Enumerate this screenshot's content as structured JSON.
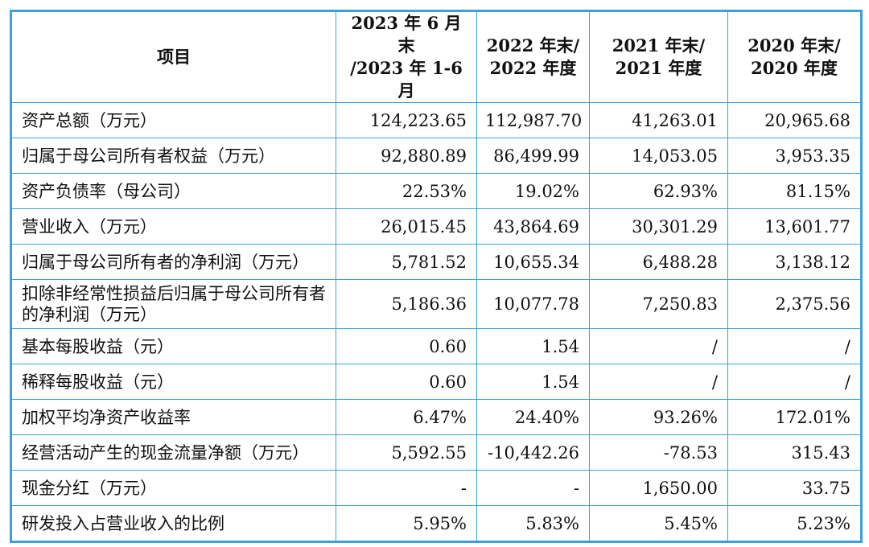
{
  "table": {
    "headers": [
      [
        "项目"
      ],
      [
        "2023 年 6 月末",
        "/2023 年 1-6 月"
      ],
      [
        "2022 年末/",
        "2022 年度"
      ],
      [
        "2021 年末/",
        "2021 年度"
      ],
      [
        "2020 年末/",
        "2020 年度"
      ]
    ],
    "rows": [
      {
        "label": "资产总额（万元）",
        "values": [
          "124,223.65",
          "112,987.70",
          "41,263.01",
          "20,965.68"
        ]
      },
      {
        "label": "归属于母公司所有者权益（万元）",
        "values": [
          "92,880.89",
          "86,499.99",
          "14,053.05",
          "3,953.35"
        ]
      },
      {
        "label": "资产负债率（母公司）",
        "values": [
          "22.53%",
          "19.02%",
          "62.93%",
          "81.15%"
        ]
      },
      {
        "label": "营业收入（万元）",
        "values": [
          "26,015.45",
          "43,864.69",
          "30,301.29",
          "13,601.77"
        ]
      },
      {
        "label": "归属于母公司所有者的净利润（万元）",
        "values": [
          "5,781.52",
          "10,655.34",
          "6,488.28",
          "3,138.12"
        ]
      },
      {
        "label": "扣除非经常性损益后归属于母公司所有者的净利润（万元）",
        "values": [
          "5,186.36",
          "10,077.78",
          "7,250.83",
          "2,375.56"
        ]
      },
      {
        "label": "基本每股收益（元）",
        "values": [
          "0.60",
          "1.54",
          "/",
          "/"
        ]
      },
      {
        "label": "稀释每股收益（元）",
        "values": [
          "0.60",
          "1.54",
          "/",
          "/"
        ]
      },
      {
        "label": "加权平均净资产收益率",
        "values": [
          "6.47%",
          "24.40%",
          "93.26%",
          "172.01%"
        ]
      },
      {
        "label": "经营活动产生的现金流量净额（万元）",
        "values": [
          "5,592.55",
          "-10,442.26",
          "-78.53",
          "315.43"
        ]
      },
      {
        "label": "现金分红（万元）",
        "values": [
          "-",
          "-",
          "1,650.00",
          "33.75"
        ]
      },
      {
        "label": "研发投入占营业收入的比例",
        "values": [
          "5.95%",
          "5.83%",
          "5.45%",
          "5.23%"
        ]
      }
    ]
  }
}
